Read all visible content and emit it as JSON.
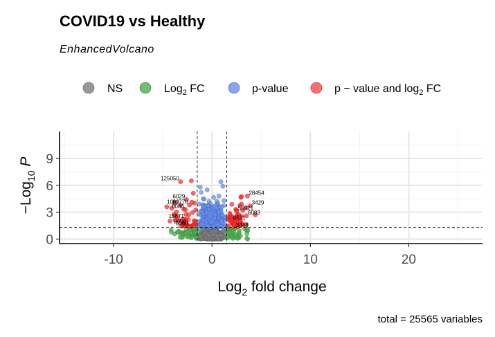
{
  "chart_data": {
    "type": "scatter",
    "title": "COVID19 vs Healthy",
    "subtitle": "EnhancedVolcano",
    "xlabel": "Log2 fold change",
    "ylabel": "-Log10 P",
    "caption": "total = 25565 variables",
    "xlim": [
      -15.5,
      27.5
    ],
    "ylim": [
      -0.5,
      12
    ],
    "x_ticks": [
      -10,
      0,
      10,
      20
    ],
    "y_ticks": [
      0,
      3,
      6,
      9
    ],
    "x_tick_labels": [
      "-10",
      "0",
      "10",
      "20"
    ],
    "y_tick_labels": [
      "0",
      "3",
      "6",
      "9"
    ],
    "fc_cutoff": [
      -1.5,
      1.5
    ],
    "p_cutoff_log10": 1.3,
    "grid": true,
    "legend_position": "top",
    "legend": [
      {
        "key": "ns",
        "label": "NS",
        "color": "#808080"
      },
      {
        "key": "log2fc",
        "label": "Log2 FC",
        "color": "#4caf50"
      },
      {
        "key": "pvalue",
        "label": "p-value",
        "color": "#6a8fe8"
      },
      {
        "key": "both",
        "label": "p - value and log2 FC",
        "color": "#ff2a2a"
      }
    ],
    "labeled_points": [
      {
        "x": -3.2,
        "y": 6.4,
        "label": "125050"
      },
      {
        "x": -2.6,
        "y": 4.4,
        "label": "6029"
      },
      {
        "x": -3.2,
        "y": 3.8,
        "label": "1009"
      },
      {
        "x": -2.3,
        "y": 3.8,
        "label": "81770"
      },
      {
        "x": -2.7,
        "y": 3.3,
        "label": "6080"
      },
      {
        "x": -2.7,
        "y": 2.2,
        "label": "15871"
      },
      {
        "x": -2.5,
        "y": 1.6,
        "label": "8050"
      },
      {
        "x": -2.3,
        "y": 1.4,
        "label": "6080"
      },
      {
        "x": 3.6,
        "y": 4.8,
        "label": "28454"
      },
      {
        "x": 2.5,
        "y": 3.1,
        "label": "56921"
      },
      {
        "x": 3.9,
        "y": 3.7,
        "label": "3429"
      },
      {
        "x": 3.5,
        "y": 2.6,
        "label": "6083"
      },
      {
        "x": 2.0,
        "y": 2.0,
        "label": "0531"
      },
      {
        "x": 2.3,
        "y": 1.2,
        "label": "3448"
      }
    ],
    "colors": {
      "ns": "#808080",
      "log2fc": "#4caf50",
      "pvalue": "#6a8fe8",
      "both": "#ff2a2a"
    }
  }
}
